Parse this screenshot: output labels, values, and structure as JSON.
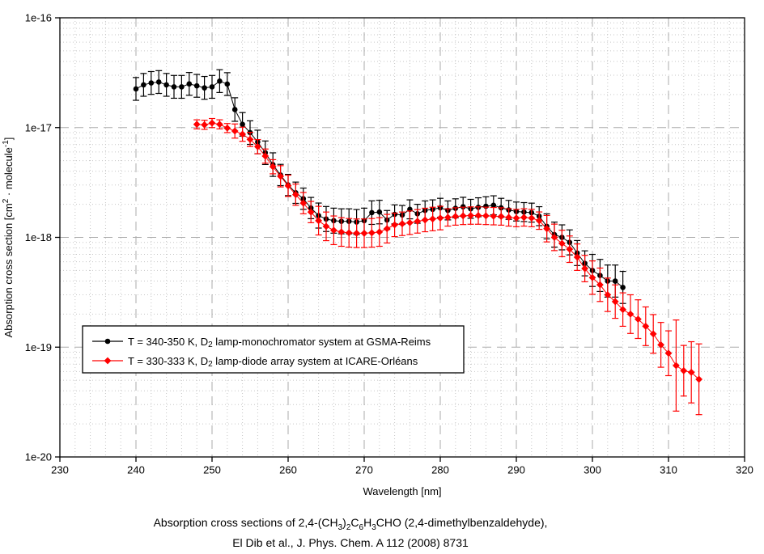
{
  "chart_data": {
    "type": "scatter",
    "title": "",
    "xlabel": "Wavelength [nm]",
    "ylabel_rich": [
      {
        "text": "Absorption cross section [cm"
      },
      {
        "sup": "2"
      },
      {
        "text": " · molecule"
      },
      {
        "sup": "-1"
      },
      {
        "text": "]"
      }
    ],
    "x_axis": {
      "min": 230,
      "max": 320,
      "major_step": 10,
      "minor_step": 2,
      "major_ticks": [
        230,
        240,
        250,
        260,
        270,
        280,
        290,
        300,
        310,
        320
      ],
      "tick_labels": [
        "230",
        "240",
        "250",
        "260",
        "270",
        "280",
        "290",
        "300",
        "310",
        "320"
      ]
    },
    "y_axis": {
      "scale": "log",
      "min": 1e-20,
      "max": 1e-16,
      "major_tick_exponents": [
        -16,
        -17,
        -18,
        -19,
        -20
      ],
      "tick_labels": [
        "1e-16",
        "1e-17",
        "1e-18",
        "1e-19",
        "1e-20"
      ]
    },
    "grid": {
      "major": true,
      "minor": true,
      "major_color": "#ababab",
      "minor_color": "#c6c6c6"
    },
    "legend": {
      "position": "inside lower-left"
    },
    "y_scale": 1e-18,
    "series": [
      {
        "name": "T = 340-350 K, D2 lamp-monochromator system at GSMA-Reims",
        "label_rich": [
          {
            "text": "T = 340-350 K, D"
          },
          {
            "sub": "2"
          },
          {
            "text": " lamp-monochromator system at GSMA-Reims"
          }
        ],
        "color": "#000000",
        "marker": "circle",
        "x": [
          240,
          241,
          242,
          243,
          244,
          245,
          246,
          247,
          248,
          249,
          250,
          251,
          252,
          253,
          254,
          255,
          256,
          257,
          258,
          259,
          260,
          261,
          262,
          263,
          264,
          265,
          266,
          267,
          268,
          269,
          270,
          271,
          272,
          273,
          274,
          275,
          276,
          277,
          278,
          279,
          280,
          281,
          282,
          283,
          284,
          285,
          286,
          287,
          288,
          289,
          290,
          291,
          292,
          293,
          294,
          295,
          296,
          297,
          298,
          299,
          300,
          301,
          302,
          303,
          304
        ],
        "y": [
          22.5,
          24.5,
          25.5,
          26.0,
          24.5,
          23.5,
          23.5,
          25.0,
          24.0,
          23.0,
          23.5,
          26.5,
          24.9,
          14.6,
          10.7,
          9.0,
          7.4,
          5.9,
          4.6,
          3.7,
          3.0,
          2.55,
          2.25,
          1.85,
          1.58,
          1.47,
          1.42,
          1.4,
          1.4,
          1.38,
          1.42,
          1.68,
          1.7,
          1.44,
          1.62,
          1.6,
          1.8,
          1.64,
          1.76,
          1.8,
          1.86,
          1.76,
          1.84,
          1.9,
          1.82,
          1.88,
          1.92,
          1.96,
          1.86,
          1.78,
          1.72,
          1.7,
          1.68,
          1.56,
          1.26,
          1.06,
          1.0,
          0.9,
          0.72,
          0.58,
          0.5,
          0.45,
          0.4,
          0.4,
          0.35
        ],
        "err_frac": [
          0.27,
          0.27,
          0.27,
          0.27,
          0.27,
          0.27,
          0.27,
          0.27,
          0.27,
          0.27,
          0.27,
          0.27,
          0.27,
          0.28,
          0.28,
          0.28,
          0.28,
          0.28,
          0.28,
          0.25,
          0.25,
          0.25,
          0.25,
          0.25,
          0.3,
          0.3,
          0.3,
          0.3,
          0.3,
          0.3,
          0.3,
          0.28,
          0.28,
          0.22,
          0.22,
          0.22,
          0.22,
          0.22,
          0.22,
          0.22,
          0.22,
          0.22,
          0.22,
          0.22,
          0.22,
          0.22,
          0.22,
          0.22,
          0.22,
          0.22,
          0.22,
          0.22,
          0.22,
          0.22,
          0.3,
          0.3,
          0.3,
          0.3,
          0.3,
          0.3,
          0.4,
          0.4,
          0.4,
          0.4,
          0.4
        ]
      },
      {
        "name": "T = 330-333 K, D2 lamp-diode array system at ICARE-Orléans",
        "label_rich": [
          {
            "text": "T = 330-333 K, D"
          },
          {
            "sub": "2"
          },
          {
            "text": " lamp-diode array system at ICARE-Orléans"
          }
        ],
        "color": "#ff0000",
        "marker": "diamond",
        "x": [
          248,
          249,
          250,
          251,
          252,
          253,
          254,
          255,
          256,
          257,
          258,
          259,
          260,
          261,
          262,
          263,
          264,
          265,
          266,
          267,
          268,
          269,
          270,
          271,
          272,
          273,
          274,
          275,
          276,
          277,
          278,
          279,
          280,
          281,
          282,
          283,
          284,
          285,
          286,
          287,
          288,
          289,
          290,
          291,
          292,
          293,
          294,
          295,
          296,
          297,
          298,
          299,
          300,
          301,
          302,
          303,
          304,
          305,
          306,
          307,
          308,
          309,
          310,
          311,
          312,
          313,
          314
        ],
        "y": [
          10.7,
          10.6,
          11.0,
          10.7,
          9.9,
          9.3,
          8.7,
          7.8,
          6.7,
          5.5,
          4.4,
          3.6,
          2.95,
          2.45,
          2.05,
          1.7,
          1.42,
          1.26,
          1.16,
          1.12,
          1.1,
          1.09,
          1.09,
          1.1,
          1.12,
          1.2,
          1.3,
          1.33,
          1.36,
          1.4,
          1.44,
          1.47,
          1.5,
          1.52,
          1.55,
          1.57,
          1.58,
          1.58,
          1.57,
          1.56,
          1.55,
          1.52,
          1.5,
          1.52,
          1.5,
          1.42,
          1.2,
          1.0,
          0.88,
          0.78,
          0.66,
          0.52,
          0.43,
          0.37,
          0.3,
          0.26,
          0.22,
          0.2,
          0.18,
          0.155,
          0.132,
          0.105,
          0.088,
          0.068,
          0.061,
          0.059,
          0.051
        ],
        "err_frac": [
          0.1,
          0.1,
          0.1,
          0.1,
          0.1,
          0.16,
          0.16,
          0.16,
          0.16,
          0.16,
          0.16,
          0.25,
          0.25,
          0.25,
          0.25,
          0.25,
          0.35,
          0.35,
          0.35,
          0.35,
          0.35,
          0.35,
          0.35,
          0.35,
          0.35,
          0.35,
          0.28,
          0.28,
          0.28,
          0.28,
          0.28,
          0.28,
          0.28,
          0.2,
          0.2,
          0.2,
          0.2,
          0.2,
          0.2,
          0.2,
          0.2,
          0.2,
          0.2,
          0.2,
          0.2,
          0.2,
          0.32,
          0.32,
          0.32,
          0.32,
          0.32,
          0.32,
          0.42,
          0.42,
          0.42,
          0.42,
          0.42,
          0.5,
          0.5,
          0.5,
          0.5,
          0.6,
          0.6,
          1.6,
          0.7,
          0.9,
          1.1
        ]
      }
    ]
  },
  "caption": {
    "line1_rich": [
      {
        "text": "Absorption cross sections of 2,4-(CH"
      },
      {
        "sub": "3"
      },
      {
        "text": ")"
      },
      {
        "sub": "2"
      },
      {
        "text": "C"
      },
      {
        "sub": "6"
      },
      {
        "text": "H"
      },
      {
        "sub": "3"
      },
      {
        "text": "CHO (2,4-dimethylbenzaldehyde),"
      }
    ],
    "line2_rich": [
      {
        "text": "El Dib et al., J. Phys. Chem. A 112 (2008) 8731"
      }
    ]
  }
}
